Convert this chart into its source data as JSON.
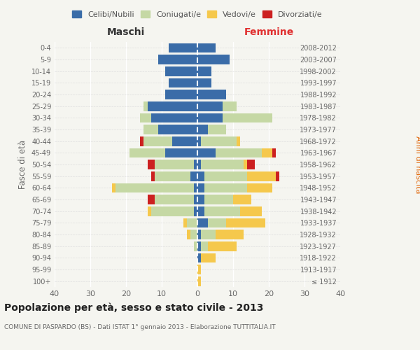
{
  "age_groups": [
    "100+",
    "95-99",
    "90-94",
    "85-89",
    "80-84",
    "75-79",
    "70-74",
    "65-69",
    "60-64",
    "55-59",
    "50-54",
    "45-49",
    "40-44",
    "35-39",
    "30-34",
    "25-29",
    "20-24",
    "15-19",
    "10-14",
    "5-9",
    "0-4"
  ],
  "birth_years": [
    "≤ 1912",
    "1913-1917",
    "1918-1922",
    "1923-1927",
    "1928-1932",
    "1933-1937",
    "1938-1942",
    "1943-1947",
    "1948-1952",
    "1953-1957",
    "1958-1962",
    "1963-1967",
    "1968-1972",
    "1973-1977",
    "1978-1982",
    "1983-1987",
    "1988-1992",
    "1993-1997",
    "1998-2002",
    "2003-2007",
    "2008-2012"
  ],
  "maschi": {
    "celibi": [
      0,
      0,
      0,
      0,
      0,
      0,
      1,
      1,
      1,
      2,
      1,
      9,
      7,
      11,
      13,
      14,
      9,
      8,
      9,
      11,
      8
    ],
    "coniugati": [
      0,
      0,
      0,
      1,
      2,
      3,
      12,
      11,
      22,
      10,
      11,
      10,
      8,
      4,
      3,
      1,
      0,
      0,
      0,
      0,
      0
    ],
    "vedovi": [
      0,
      0,
      0,
      0,
      1,
      1,
      1,
      0,
      1,
      0,
      0,
      0,
      0,
      0,
      0,
      0,
      0,
      0,
      0,
      0,
      0
    ],
    "divorziati": [
      0,
      0,
      0,
      0,
      0,
      0,
      0,
      2,
      0,
      1,
      2,
      0,
      1,
      0,
      0,
      0,
      0,
      0,
      0,
      0,
      0
    ]
  },
  "femmine": {
    "nubili": [
      0,
      0,
      1,
      1,
      1,
      3,
      2,
      2,
      2,
      2,
      1,
      5,
      1,
      3,
      7,
      7,
      8,
      4,
      4,
      9,
      5
    ],
    "coniugate": [
      0,
      0,
      0,
      2,
      4,
      5,
      10,
      8,
      12,
      12,
      12,
      13,
      10,
      5,
      14,
      4,
      0,
      0,
      0,
      0,
      0
    ],
    "vedove": [
      1,
      1,
      4,
      8,
      8,
      11,
      6,
      5,
      7,
      8,
      1,
      3,
      1,
      0,
      0,
      0,
      0,
      0,
      0,
      0,
      0
    ],
    "divorziate": [
      0,
      0,
      0,
      0,
      0,
      0,
      0,
      0,
      0,
      1,
      2,
      1,
      0,
      0,
      0,
      0,
      0,
      0,
      0,
      0,
      0
    ]
  },
  "colors": {
    "celibi": "#3a6ca8",
    "coniugati": "#c5d8a4",
    "vedovi": "#f5c84c",
    "divorziati": "#cc2020"
  },
  "xlim": 40,
  "title": "Popolazione per età, sesso e stato civile - 2013",
  "subtitle": "COMUNE DI PASPARDO (BS) - Dati ISTAT 1° gennaio 2013 - Elaborazione TUTTITALIA.IT",
  "ylabel_left": "Fasce di età",
  "ylabel_right": "Anni di nascita",
  "xlabel_left": "Maschi",
  "xlabel_right": "Femmine",
  "legend_labels": [
    "Celibi/Nubili",
    "Coniugati/e",
    "Vedovi/e",
    "Divorziati/e"
  ],
  "bg_color": "#f5f5f0",
  "bar_height": 0.82
}
